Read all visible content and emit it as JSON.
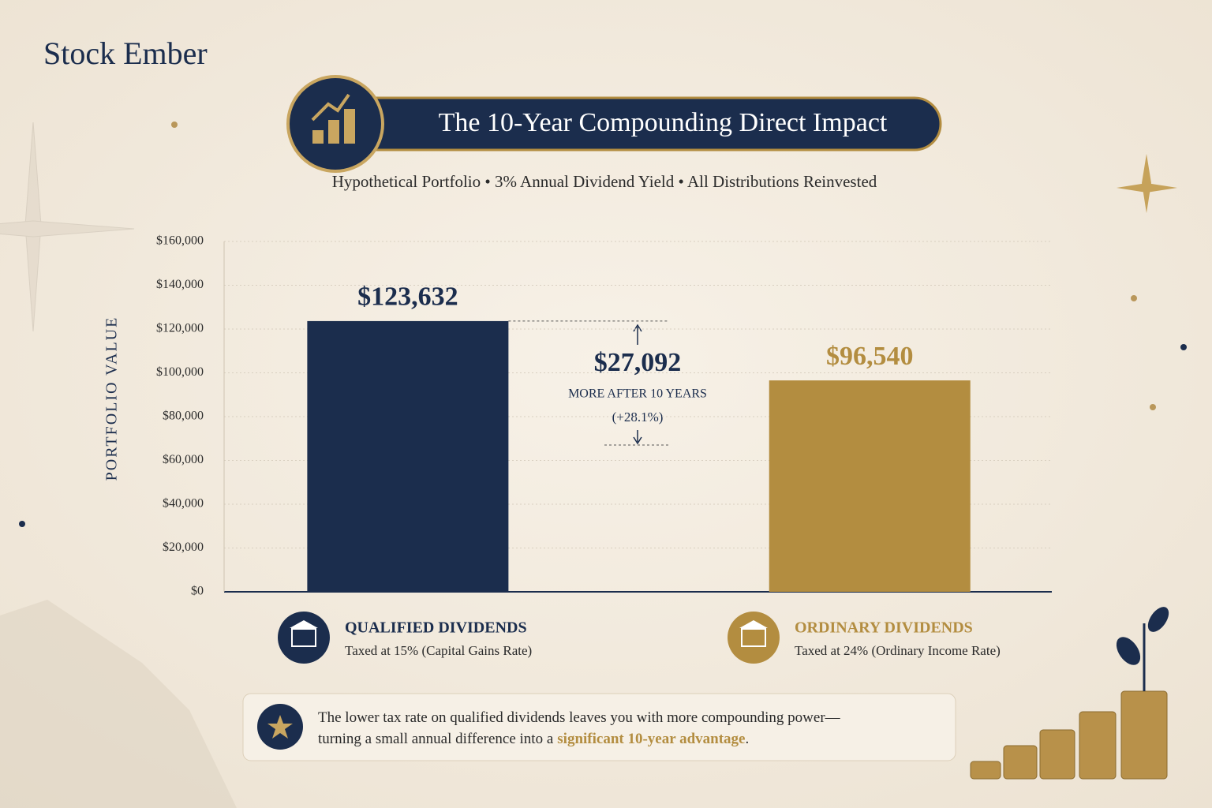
{
  "brand": "Stock Ember",
  "chart_data": {
    "type": "bar",
    "title": "The 10-Year Compounding Direct Impact",
    "subtitle": "Hypothetical Portfolio • 3% Annual Dividend Yield • All Distributions Reinvested",
    "y_label": "PORTFOLIO VALUE",
    "categories": [
      "QUALIFIED DIVIDENDS",
      "ORDINARY DIVIDENDS"
    ],
    "category_notes": [
      "Taxed at 15% (Capital Gains Rate)",
      "Taxed at 24% (Ordinary Income Rate)"
    ],
    "values": [
      123632,
      96540
    ],
    "value_labels": [
      "$123,632",
      "$96,540"
    ],
    "colors": [
      "#1b2d4d",
      "#b38d40"
    ],
    "ylim": [
      0,
      160000
    ],
    "yticks": [
      {
        "value": 0,
        "label": "$0"
      },
      {
        "value": 20000,
        "label": "$20,000"
      },
      {
        "value": 40000,
        "label": "$40,000"
      },
      {
        "value": 60000,
        "label": "$60,000"
      },
      {
        "value": 80000,
        "label": "$80,000"
      },
      {
        "value": 100000,
        "label": "$100,000"
      },
      {
        "value": 120000,
        "label": "$120,000"
      },
      {
        "value": 140000,
        "label": "$140,000"
      },
      {
        "value": 160000,
        "label": "$160,000"
      }
    ],
    "grid": true,
    "annotation": {
      "amount": "$27,092",
      "text": "MORE AFTER 10 YEARS",
      "percent": "(+28.1%)"
    }
  },
  "note": {
    "line1": "The lower tax rate on qualified dividends leaves you with more compounding power—",
    "line2": "turning a small annual difference into a",
    "highlight": "significant 10-year advantage",
    "end": "."
  }
}
